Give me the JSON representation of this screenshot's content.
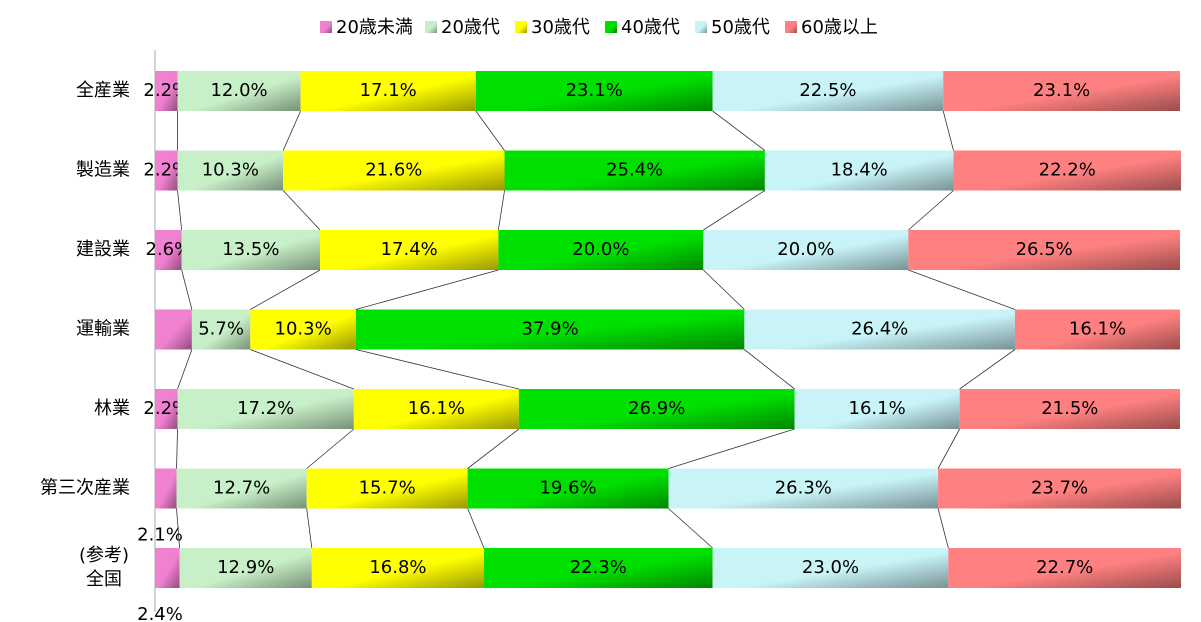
{
  "chart_data": {
    "type": "stacked-bar-horizontal",
    "categories": [
      "全産業",
      "製造業",
      "建設業",
      "運輸業",
      "林業",
      "第三次産業",
      "(参考)\n全国"
    ],
    "series": [
      {
        "name": "20歳未満",
        "color": "#f080d0",
        "values": [
          2.2,
          2.2,
          2.6,
          3.6,
          2.2,
          2.1,
          2.4
        ],
        "value_labels": [
          "2.2%",
          "2.2%",
          "2.6%",
          null,
          "2.2%",
          "2.1%",
          "2.4%"
        ]
      },
      {
        "name": "20歳代",
        "color": "#c8f0c8",
        "values": [
          12.0,
          10.3,
          13.5,
          5.7,
          17.2,
          12.7,
          12.9
        ],
        "value_labels": [
          "12.0%",
          "10.3%",
          "13.5%",
          "5.7%",
          "17.2%",
          "12.7%",
          "12.9%"
        ]
      },
      {
        "name": "30歳代",
        "color": "#ffff00",
        "values": [
          17.1,
          21.6,
          17.4,
          10.3,
          16.1,
          15.7,
          16.8
        ],
        "value_labels": [
          "17.1%",
          "21.6%",
          "17.4%",
          "10.3%",
          "16.1%",
          "15.7%",
          "16.8%"
        ]
      },
      {
        "name": "40歳代",
        "color": "#00e000",
        "values": [
          23.1,
          25.4,
          20.0,
          37.9,
          26.9,
          19.6,
          22.3
        ],
        "value_labels": [
          "23.1%",
          "25.4%",
          "20.0%",
          "37.9%",
          "26.9%",
          "19.6%",
          "22.3%"
        ]
      },
      {
        "name": "50歳代",
        "color": "#c8f4f8",
        "values": [
          22.5,
          18.4,
          20.0,
          26.4,
          16.1,
          26.3,
          23.0
        ],
        "value_labels": [
          "22.5%",
          "18.4%",
          "20.0%",
          "26.4%",
          "16.1%",
          "26.3%",
          "23.0%"
        ]
      },
      {
        "name": "60歳以上",
        "color": "#ff8080",
        "values": [
          23.1,
          22.2,
          26.5,
          16.1,
          21.5,
          23.7,
          22.7
        ],
        "value_labels": [
          "23.1%",
          "22.2%",
          "26.5%",
          "16.1%",
          "21.5%",
          "23.7%",
          "22.7%"
        ]
      }
    ],
    "xlim": [
      0,
      100
    ],
    "legend": "top"
  }
}
